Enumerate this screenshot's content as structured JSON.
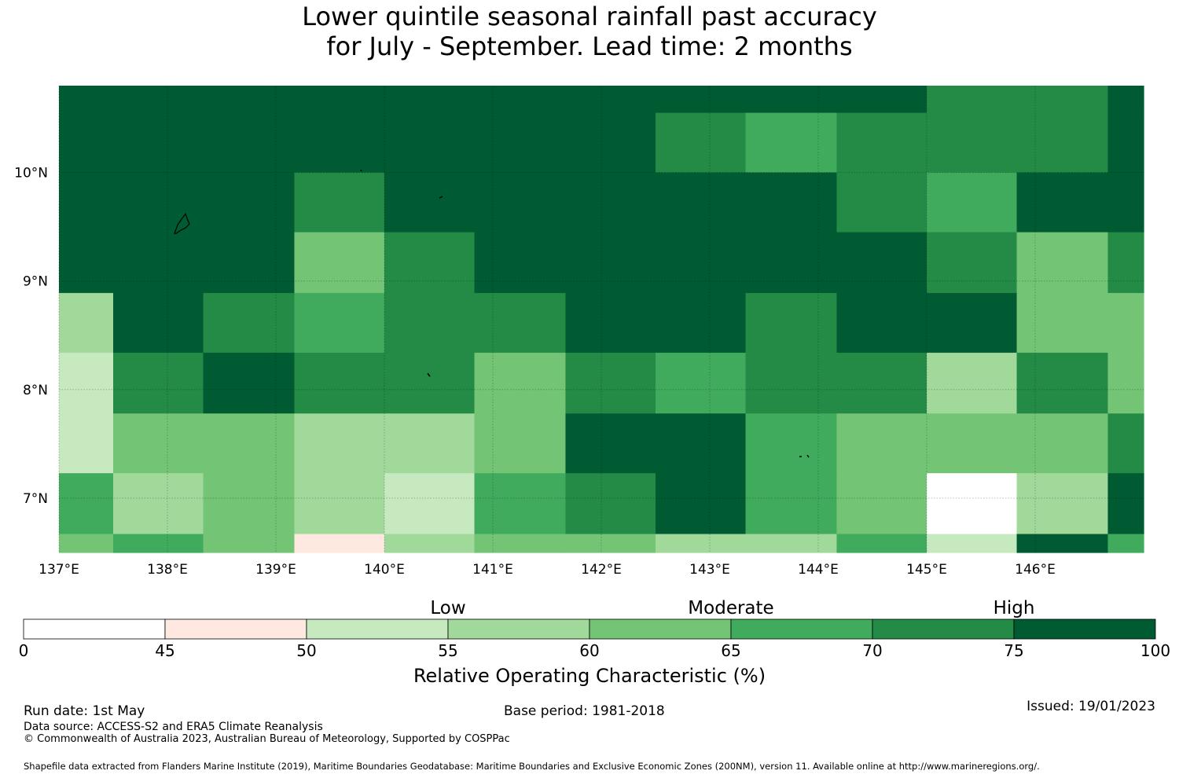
{
  "title": {
    "line1": "Lower quintile seasonal rainfall past accuracy",
    "line2": "for July - September. Lead time: 2 months"
  },
  "map": {
    "lon_range": [
      137.0,
      147.0
    ],
    "lat_range": [
      6.5,
      10.8
    ],
    "lon_ticks": [
      "137°E",
      "138°E",
      "139°E",
      "140°E",
      "141°E",
      "142°E",
      "143°E",
      "144°E",
      "145°E",
      "146°E"
    ],
    "lat_ticks": [
      "10°N",
      "9°N",
      "8°N",
      "7°N"
    ],
    "grid": true,
    "column_edges_lon": [
      137.0,
      137.5,
      138.33,
      139.17,
      140.0,
      140.83,
      141.67,
      142.5,
      143.33,
      144.17,
      145.0,
      145.83,
      146.67,
      147.0
    ],
    "row_edges_lat": [
      10.8,
      10.55,
      10.0,
      9.45,
      8.89,
      8.34,
      7.78,
      7.23,
      6.67,
      6.5
    ],
    "cell_classes": [
      [
        7,
        7,
        7,
        7,
        7,
        7,
        7,
        7,
        7,
        7,
        6,
        6,
        7
      ],
      [
        7,
        7,
        7,
        7,
        7,
        7,
        7,
        6,
        5,
        6,
        6,
        6,
        7
      ],
      [
        7,
        7,
        7,
        6,
        7,
        7,
        7,
        7,
        7,
        6,
        5,
        7,
        7
      ],
      [
        7,
        7,
        7,
        4,
        6,
        7,
        7,
        7,
        7,
        7,
        6,
        4,
        6
      ],
      [
        3,
        7,
        6,
        5,
        6,
        6,
        7,
        7,
        6,
        7,
        7,
        4,
        4
      ],
      [
        2,
        6,
        7,
        6,
        6,
        4,
        6,
        5,
        6,
        6,
        3,
        6,
        4
      ],
      [
        2,
        4,
        4,
        3,
        3,
        4,
        7,
        7,
        5,
        4,
        4,
        4,
        6
      ],
      [
        5,
        3,
        4,
        3,
        2,
        5,
        6,
        7,
        5,
        4,
        0,
        3,
        7
      ],
      [
        4,
        5,
        4,
        1,
        3,
        4,
        4,
        3,
        3,
        5,
        2,
        7,
        5
      ]
    ],
    "legend_class_colors": [
      "#ffffff",
      "#fee8df",
      "#c7e9c0",
      "#a1d99b",
      "#74c476",
      "#41ab5d",
      "#238b45",
      "#005a32"
    ]
  },
  "colorbar": {
    "category_labels": [
      "Low",
      "Moderate",
      "High"
    ],
    "tick_labels": [
      "0",
      "45",
      "50",
      "55",
      "60",
      "65",
      "70",
      "75",
      "100"
    ],
    "label": "Relative Operating Characteristic (%)"
  },
  "footer": {
    "run_date": "Run date: 1st May",
    "base_period": "Base period: 1981-2018",
    "issued": "Issued: 19/01/2023",
    "data_source": "Data source: ACCESS-S2 and ERA5 Climate Reanalysis",
    "copyright": "© Commonwealth of Australia 2023, Australian Bureau of Meteorology, Supported by COSPPac",
    "shapefile": "Shapefile data extracted from Flanders Marine Institute (2019), Maritime Boundaries Geodatabase: Maritime Boundaries and Exclusive Economic Zones (200NM), version 11. Available online at http://www.marineregions.org/."
  }
}
